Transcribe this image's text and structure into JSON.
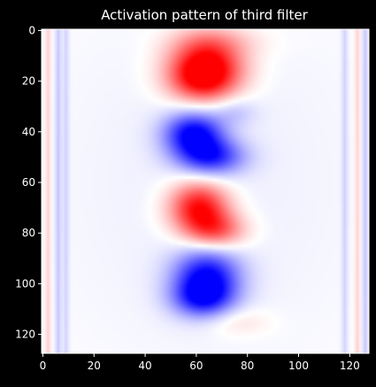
{
  "chart_data": {
    "type": "heatmap",
    "title": "Activation pattern of third filter",
    "xlabel": "",
    "ylabel": "",
    "x_range": [
      -0.5,
      127.5
    ],
    "y_range": [
      127.5,
      -0.5
    ],
    "y_axis_inverted": true,
    "grid": false,
    "colormap": "bwr",
    "value_range": [
      -1,
      1
    ],
    "x_ticks": [
      {
        "value": 0,
        "label": "0"
      },
      {
        "value": 20,
        "label": "20"
      },
      {
        "value": 40,
        "label": "40"
      },
      {
        "value": 60,
        "label": "60"
      },
      {
        "value": 80,
        "label": "80"
      },
      {
        "value": 100,
        "label": "100"
      },
      {
        "value": 120,
        "label": "120"
      }
    ],
    "y_ticks": [
      {
        "value": 0,
        "label": "0"
      },
      {
        "value": 20,
        "label": "20"
      },
      {
        "value": 40,
        "label": "40"
      },
      {
        "value": 60,
        "label": "60"
      },
      {
        "value": 80,
        "label": "80"
      },
      {
        "value": 100,
        "label": "100"
      },
      {
        "value": 120,
        "label": "120"
      }
    ],
    "regions": [
      {
        "sign": "positive",
        "center_x": 64,
        "center_y": 13,
        "radius_x": 10,
        "radius_y": 8,
        "amplitude": 1.0
      },
      {
        "sign": "positive",
        "center_x": 62,
        "center_y": 20,
        "radius_x": 9,
        "radius_y": 6,
        "amplitude": 0.6
      },
      {
        "sign": "negative",
        "center_x": 59,
        "center_y": 41,
        "radius_x": 8,
        "radius_y": 6,
        "amplitude": 1.0
      },
      {
        "sign": "negative",
        "center_x": 66,
        "center_y": 50,
        "radius_x": 9,
        "radius_y": 5,
        "amplitude": 0.75
      },
      {
        "sign": "negative",
        "center_x": 75,
        "center_y": 32,
        "radius_x": 6,
        "radius_y": 4,
        "amplitude": 0.18
      },
      {
        "sign": "positive",
        "center_x": 61,
        "center_y": 70,
        "radius_x": 8,
        "radius_y": 7,
        "amplitude": 1.0
      },
      {
        "sign": "positive",
        "center_x": 68,
        "center_y": 79,
        "radius_x": 8,
        "radius_y": 5,
        "amplitude": 0.6
      },
      {
        "sign": "negative",
        "center_x": 64,
        "center_y": 98,
        "radius_x": 9,
        "radius_y": 8,
        "amplitude": 1.0
      },
      {
        "sign": "negative",
        "center_x": 62,
        "center_y": 106,
        "radius_x": 8,
        "radius_y": 5,
        "amplitude": 0.55
      },
      {
        "sign": "positive",
        "center_x": 76,
        "center_y": 115,
        "radius_x": 9,
        "radius_y": 4,
        "amplitude": 0.15
      },
      {
        "sign": "positive",
        "center_x": 70,
        "center_y": 4,
        "radius_x": 14,
        "radius_y": 4,
        "amplitude": 0.12
      },
      {
        "sign": "negative",
        "center_x": 64,
        "center_y": 60,
        "radius_x": 50,
        "radius_y": 60,
        "amplitude": 0.06
      }
    ],
    "edge_lines": [
      {
        "sign": "positive",
        "x": 2,
        "amplitude": 0.2
      },
      {
        "sign": "negative",
        "x": 6,
        "amplitude": 0.2
      },
      {
        "sign": "negative",
        "x": 9,
        "amplitude": 0.15
      },
      {
        "sign": "negative",
        "x": 118,
        "amplitude": 0.15
      },
      {
        "sign": "positive",
        "x": 123,
        "amplitude": 0.2
      },
      {
        "sign": "negative",
        "x": 126,
        "amplitude": 0.2
      }
    ]
  },
  "colors": {
    "background": "#000000",
    "text": "#ffffff",
    "positive": "#ff0000",
    "negative": "#0000ff",
    "neutral": "#ffffff"
  }
}
